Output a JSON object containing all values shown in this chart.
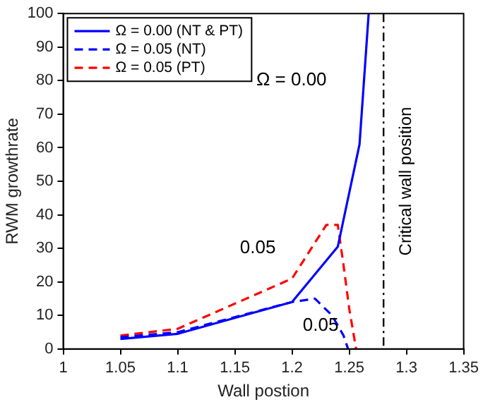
{
  "chart_data": {
    "type": "line",
    "xlabel": "Wall postion",
    "ylabel": "RWM growthrate",
    "xlim": [
      1,
      1.35
    ],
    "xticks": [
      1,
      1.05,
      1.1,
      1.15,
      1.2,
      1.25,
      1.3,
      1.35
    ],
    "ylim": [
      0,
      100
    ],
    "yticks": [
      0,
      10,
      20,
      30,
      40,
      50,
      60,
      70,
      80,
      90,
      100
    ],
    "grid": false,
    "legend": "top left",
    "marker": "none",
    "series": [
      {
        "name": "Ω = 0.00 (NT & PT)",
        "color": "#0000ff",
        "line_style": "solid",
        "x": [
          1.05,
          1.1,
          1.2,
          1.24,
          1.259,
          1.267
        ],
        "values": [
          3,
          4.5,
          14,
          30.5,
          61,
          100
        ]
      },
      {
        "name": "Ω = 0.05 (NT)",
        "color": "#0000ff",
        "line_style": "dashed",
        "x": [
          1.05,
          1.1,
          1.2,
          1.22,
          1.235,
          1.245,
          1.249
        ],
        "values": [
          3.5,
          5,
          14,
          15,
          10,
          4,
          0
        ]
      },
      {
        "name": "Ω = 0.05 (PT)",
        "color": "#ff0000",
        "line_style": "dashed",
        "x": [
          1.05,
          1.1,
          1.2,
          1.23,
          1.24,
          1.245,
          1.25,
          1.256
        ],
        "values": [
          4,
          6,
          21,
          37,
          37,
          25,
          12,
          0
        ]
      }
    ],
    "ref_lines": [
      {
        "axis": "x",
        "value": 1.28,
        "label": "Critical wall position",
        "color": "#000000",
        "line_style": "dashdot"
      }
    ],
    "annotations": [
      "Ω = 0.00",
      "0.05",
      "0.05"
    ]
  }
}
